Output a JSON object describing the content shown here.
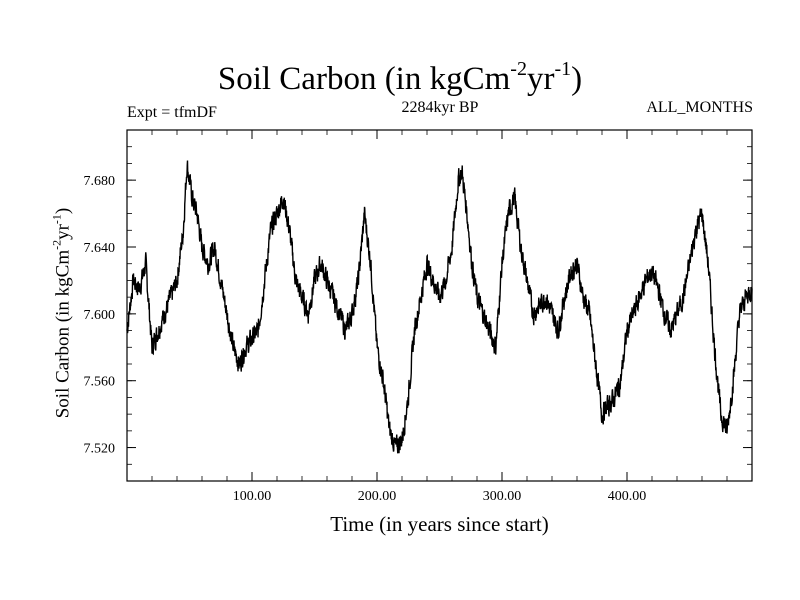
{
  "header": {
    "title_main": "Soil Carbon (in kgCm",
    "title_sup1": "-2",
    "title_mid": "yr",
    "title_sup2": "-1",
    "title_end": ")",
    "expt": "Expt = tfmDF",
    "period": "2284kyr BP",
    "months": "ALL_MONTHS"
  },
  "axes": {
    "ylabel_main": "Soil Carbon (in kgCm",
    "ylabel_sup1": "-2",
    "ylabel_mid": "yr",
    "ylabel_sup2": "-1",
    "ylabel_end": ")",
    "xlabel": "Time (in years since start)"
  },
  "chart_data": {
    "type": "line",
    "title": "Soil Carbon (in kgCm-2yr-1)",
    "subtitle": "2284kyr BP",
    "xlabel": "Time (in years since start)",
    "ylabel": "Soil Carbon (in kgCm-2yr-1)",
    "xlim": [
      0,
      500
    ],
    "ylim": [
      7.5,
      7.71
    ],
    "xticks": [
      100,
      200,
      300,
      400
    ],
    "xtick_labels": [
      "100.00",
      "200.00",
      "300.00",
      "400.00"
    ],
    "yticks": [
      7.52,
      7.56,
      7.6,
      7.64,
      7.68
    ],
    "ytick_labels": [
      "7.520",
      "7.560",
      "7.600",
      "7.640",
      "7.680"
    ],
    "grid": false,
    "color": "#000000",
    "series": [
      {
        "x": [
          0,
          5,
          10,
          15,
          20,
          25,
          30,
          35,
          40,
          45,
          48,
          52,
          56,
          60,
          65,
          70,
          75,
          80,
          85,
          90,
          95,
          100,
          105,
          110,
          115,
          120,
          125,
          130,
          135,
          140,
          145,
          150,
          155,
          160,
          165,
          170,
          175,
          180,
          185,
          190,
          195,
          200,
          205,
          210,
          215,
          220,
          225,
          230,
          235,
          240,
          245,
          250,
          255,
          260,
          265,
          268,
          272,
          276,
          280,
          285,
          290,
          295,
          300,
          305,
          310,
          315,
          320,
          325,
          330,
          335,
          340,
          345,
          350,
          355,
          360,
          365,
          370,
          375,
          380,
          385,
          390,
          395,
          400,
          405,
          410,
          415,
          420,
          425,
          430,
          435,
          440,
          445,
          450,
          455,
          460,
          465,
          470,
          475,
          480,
          485,
          490,
          495,
          500
        ],
        "values": [
          7.59,
          7.62,
          7.615,
          7.63,
          7.58,
          7.59,
          7.6,
          7.61,
          7.62,
          7.65,
          7.69,
          7.67,
          7.66,
          7.64,
          7.63,
          7.64,
          7.62,
          7.6,
          7.58,
          7.57,
          7.58,
          7.585,
          7.59,
          7.62,
          7.65,
          7.66,
          7.67,
          7.65,
          7.62,
          7.61,
          7.6,
          7.62,
          7.63,
          7.62,
          7.61,
          7.6,
          7.59,
          7.6,
          7.62,
          7.66,
          7.63,
          7.58,
          7.56,
          7.53,
          7.52,
          7.525,
          7.55,
          7.59,
          7.61,
          7.63,
          7.62,
          7.61,
          7.62,
          7.64,
          7.68,
          7.685,
          7.66,
          7.63,
          7.61,
          7.6,
          7.59,
          7.58,
          7.63,
          7.66,
          7.67,
          7.64,
          7.62,
          7.6,
          7.605,
          7.61,
          7.6,
          7.59,
          7.61,
          7.625,
          7.63,
          7.61,
          7.6,
          7.57,
          7.54,
          7.545,
          7.55,
          7.56,
          7.59,
          7.6,
          7.61,
          7.62,
          7.625,
          7.615,
          7.6,
          7.59,
          7.6,
          7.61,
          7.63,
          7.65,
          7.66,
          7.63,
          7.58,
          7.54,
          7.53,
          7.56,
          7.6,
          7.61,
          7.615
        ]
      }
    ]
  }
}
